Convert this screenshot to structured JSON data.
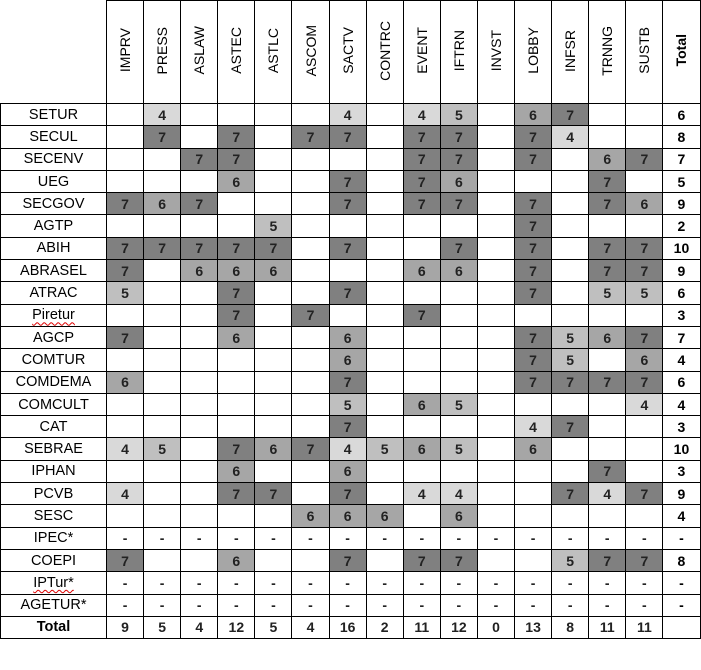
{
  "shade_colors": {
    "7": "#808080",
    "6": "#a6a6a6",
    "5": "#bfbfbf",
    "4": "#d9d9d9"
  },
  "columns": [
    "IMPRV",
    "PRESS",
    "ASLAW",
    "ASTEC",
    "ASTLC",
    "ASCOM",
    "SACTV",
    "CONTRC",
    "EVENT",
    "IFTRN",
    "INVST",
    "LOBBY",
    "INFSR",
    "TRNNG",
    "SUSTB",
    "Total"
  ],
  "rows": [
    {
      "name": "SETUR",
      "values": [
        "",
        "4",
        "",
        "",
        "",
        "",
        "4",
        "",
        "4",
        "5",
        "",
        "6",
        "7",
        "",
        "",
        "6"
      ]
    },
    {
      "name": "SECUL",
      "values": [
        "",
        "7",
        "",
        "7",
        "",
        "7",
        "7",
        "",
        "7",
        "7",
        "",
        "7",
        "4",
        "",
        "",
        "8"
      ]
    },
    {
      "name": "SECENV",
      "values": [
        "",
        "",
        "7",
        "7",
        "",
        "",
        "",
        "",
        "7",
        "7",
        "",
        "7",
        "",
        "6",
        "7",
        "7"
      ]
    },
    {
      "name": "UEG",
      "values": [
        "",
        "",
        "",
        "6",
        "",
        "",
        "7",
        "",
        "7",
        "6",
        "",
        "",
        "",
        "7",
        "",
        "5"
      ]
    },
    {
      "name": "SECGOV",
      "values": [
        "7",
        "6",
        "7",
        "",
        "",
        "",
        "7",
        "",
        "7",
        "7",
        "",
        "7",
        "",
        "7",
        "6",
        "9"
      ]
    },
    {
      "name": "AGTP",
      "values": [
        "",
        "",
        "",
        "",
        "5",
        "",
        "",
        "",
        "",
        "",
        "",
        "7",
        "",
        "",
        "",
        "2"
      ]
    },
    {
      "name": "ABIH",
      "values": [
        "7",
        "7",
        "7",
        "7",
        "7",
        "",
        "7",
        "",
        "",
        "7",
        "",
        "7",
        "",
        "7",
        "7",
        "10"
      ]
    },
    {
      "name": "ABRASEL",
      "values": [
        "7",
        "",
        "6",
        "6",
        "6",
        "",
        "",
        "",
        "6",
        "6",
        "",
        "7",
        "",
        "7",
        "7",
        "9"
      ]
    },
    {
      "name": "ATRAC",
      "values": [
        "5",
        "",
        "",
        "7",
        "",
        "",
        "7",
        "",
        "",
        "",
        "",
        "7",
        "",
        "5",
        "5",
        "6"
      ]
    },
    {
      "name": "Piretur",
      "spell_flag": true,
      "values": [
        "",
        "",
        "",
        "7",
        "",
        "7",
        "",
        "",
        "7",
        "",
        "",
        "",
        "",
        "",
        "",
        "3"
      ]
    },
    {
      "name": "AGCP",
      "values": [
        "7",
        "",
        "",
        "6",
        "",
        "",
        "6",
        "",
        "",
        "",
        "",
        "7",
        "5",
        "6",
        "7",
        "7"
      ]
    },
    {
      "name": "COMTUR",
      "values": [
        "",
        "",
        "",
        "",
        "",
        "",
        "6",
        "",
        "",
        "",
        "",
        "7",
        "5",
        "",
        "6",
        "4"
      ]
    },
    {
      "name": "COMDEMA",
      "values": [
        "6",
        "",
        "",
        "",
        "",
        "",
        "7",
        "",
        "",
        "",
        "",
        "7",
        "7",
        "7",
        "7",
        "6"
      ]
    },
    {
      "name": "COMCULT",
      "values": [
        "",
        "",
        "",
        "",
        "",
        "",
        "5",
        "",
        "6",
        "5",
        "",
        "",
        "",
        "",
        "4",
        "4"
      ]
    },
    {
      "name": "CAT",
      "values": [
        "",
        "",
        "",
        "",
        "",
        "",
        "7",
        "",
        "",
        "",
        "",
        "4",
        "7",
        "",
        "",
        "3"
      ]
    },
    {
      "name": "SEBRAE",
      "values": [
        "4",
        "5",
        "",
        "7",
        "6",
        "7",
        "4",
        "5",
        "6",
        "5",
        "",
        "6",
        "",
        "",
        "",
        "10"
      ]
    },
    {
      "name": "IPHAN",
      "values": [
        "",
        "",
        "",
        "6",
        "",
        "",
        "6",
        "",
        "",
        "",
        "",
        "",
        "",
        "7",
        "",
        "3"
      ]
    },
    {
      "name": "PCVB",
      "values": [
        "4",
        "",
        "",
        "7",
        "7",
        "",
        "7",
        "",
        "4",
        "4",
        "",
        "",
        "7",
        "4",
        "7",
        "9"
      ]
    },
    {
      "name": "SESC",
      "values": [
        "",
        "",
        "",
        "",
        "",
        "6",
        "6",
        "6",
        "",
        "6",
        "",
        "",
        "",
        "",
        "",
        "4"
      ]
    },
    {
      "name": "IPEC*",
      "values": [
        "-",
        "-",
        "-",
        "-",
        "-",
        "-",
        "-",
        "-",
        "-",
        "-",
        "-",
        "-",
        "-",
        "-",
        "-",
        "-"
      ]
    },
    {
      "name": "COEPI",
      "values": [
        "7",
        "",
        "",
        "6",
        "",
        "",
        "7",
        "",
        "7",
        "7",
        "",
        "",
        "5",
        "7",
        "7",
        "8"
      ]
    },
    {
      "name": "IPTur*",
      "spell_flag": true,
      "values": [
        "-",
        "-",
        "-",
        "-",
        "-",
        "-",
        "-",
        "-",
        "-",
        "-",
        "-",
        "-",
        "-",
        "-",
        "-",
        "-"
      ]
    },
    {
      "name": "AGETUR*",
      "values": [
        "-",
        "-",
        "-",
        "-",
        "-",
        "-",
        "-",
        "-",
        "-",
        "-",
        "-",
        "-",
        "-",
        "-",
        "-",
        "-"
      ]
    }
  ],
  "totals_row": {
    "name": "Total",
    "values": [
      "9",
      "5",
      "4",
      "12",
      "5",
      "4",
      "16",
      "2",
      "11",
      "12",
      "0",
      "13",
      "8",
      "11",
      "11",
      ""
    ]
  }
}
